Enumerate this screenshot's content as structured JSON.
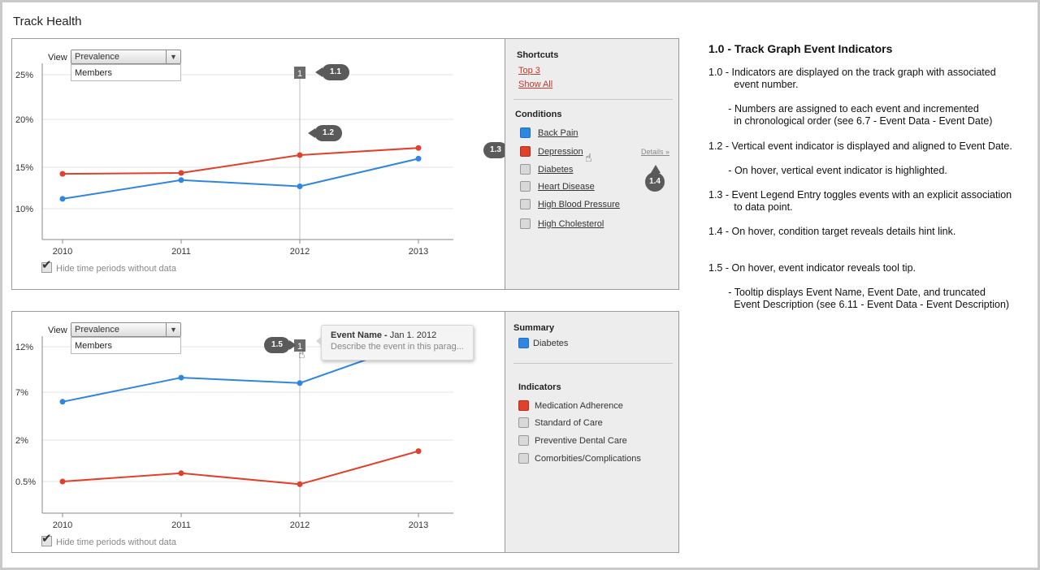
{
  "page": {
    "title": "Track Health"
  },
  "top_panel": {
    "view_label": "View",
    "view_select": "Prevalence",
    "dropdown_option": "Members",
    "hide_periods_label": "Hide time periods without data",
    "event_marker": "1",
    "callouts": {
      "c11": "1.1",
      "c12": "1.2",
      "c13": "1.3",
      "c14": "1.4"
    },
    "sidebar": {
      "shortcuts_heading": "Shortcuts",
      "shortcut_links": [
        "Top 3",
        "Show All"
      ],
      "conditions_heading": "Conditions",
      "conditions": [
        {
          "label": "Back Pain",
          "color": "#2f86e0"
        },
        {
          "label": "Depression",
          "color": "#e0412b"
        },
        {
          "label": "Diabetes",
          "color": "#d8d8d8"
        },
        {
          "label": "Heart Disease",
          "color": "#d8d8d8"
        },
        {
          "label": "High Blood Pressure",
          "color": "#d8d8d8"
        },
        {
          "label": "High Cholesterol",
          "color": "#d8d8d8"
        }
      ],
      "details_hint": "Details »"
    }
  },
  "bottom_panel": {
    "view_label": "View",
    "view_select": "Prevalence",
    "dropdown_option": "Members",
    "hide_periods_label": "Hide time periods without data",
    "event_marker": "1",
    "callout": "1.5",
    "tooltip": {
      "name": "Event Name -",
      "date": "Jan 1. 2012",
      "description": "Describe the event in this parag..."
    },
    "sidebar": {
      "summary_heading": "Summary",
      "summary_item": {
        "label": "Diabetes",
        "color": "#2f86e0"
      },
      "indicators_heading": "Indicators",
      "indicators": [
        {
          "label": "Medication Adherence",
          "color": "#e0412b"
        },
        {
          "label": "Standard of Care",
          "color": "#d8d8d8"
        },
        {
          "label": "Preventive Dental Care",
          "color": "#d8d8d8"
        },
        {
          "label": "Comorbities/Complications",
          "color": "#d8d8d8"
        }
      ]
    }
  },
  "chart_data": [
    {
      "type": "line",
      "x": [
        2010,
        2011,
        2012,
        2013
      ],
      "y_ticks": [
        "25%",
        "20%",
        "15%",
        "10%"
      ],
      "ylim": [
        8,
        26
      ],
      "series": [
        {
          "name": "Back Pain",
          "color": "#2f86e0",
          "values": [
            11.1,
            13.2,
            12.5,
            15.6
          ]
        },
        {
          "name": "Depression",
          "color": "#e0412b",
          "values": [
            13.9,
            14.0,
            16.0,
            16.8
          ]
        }
      ],
      "event_x": 2012,
      "grid": true
    },
    {
      "type": "line",
      "x": [
        2010,
        2011,
        2012,
        2013
      ],
      "y_ticks": [
        "12%",
        "7%",
        "2%",
        "0.5%"
      ],
      "series": [
        {
          "name": "Diabetes",
          "color": "#2f86e0",
          "values": [
            6.0,
            8.6,
            8.0,
            12.6
          ]
        },
        {
          "name": "Medication Adherence",
          "color": "#e0412b",
          "values": [
            0.5,
            0.8,
            0.4,
            1.6
          ]
        }
      ],
      "event_x": 2012,
      "grid": true
    }
  ],
  "notes": {
    "title": "1.0 - Track Graph Event Indicators",
    "items": [
      "1.0 - Indicators are displayed on the track graph with associated\n         event number.",
      "       - Numbers are assigned to each event and incremented\n         in chronological order (see 6.7 - Event Data - Event Date)",
      "1.2 - Vertical event indicator is displayed and aligned to Event Date.",
      "       - On hover, vertical event indicator is highlighted.",
      "1.3 - Event Legend Entry toggles events with an explicit association\n         to data point.",
      "1.4 - On hover, condition target reveals details hint link.",
      "1.5 - On hover, event indicator reveals tool tip.",
      "       - Tooltip displays Event Name, Event Date, and truncated\n         Event Description (see 6.11 - Event Data - Event Description)"
    ]
  }
}
